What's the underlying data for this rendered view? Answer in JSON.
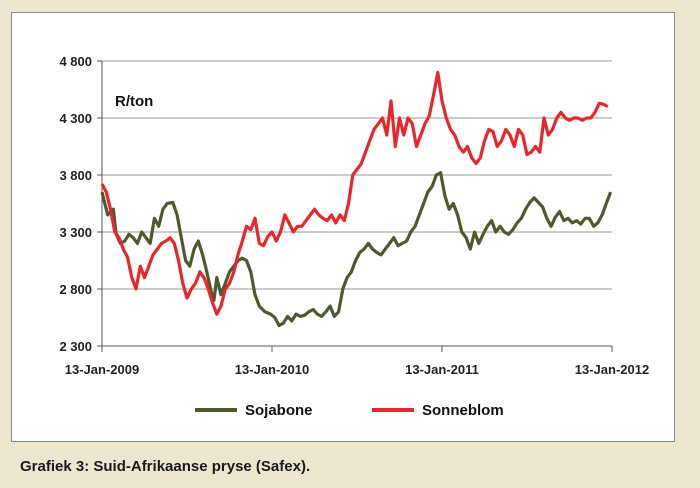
{
  "caption": "Grafiek 3: Suid-Afrikaanse pryse (Safex).",
  "chart_data": {
    "type": "line",
    "unit_label": "R/ton",
    "ylim": [
      2300,
      4800
    ],
    "yticks": [
      2300,
      2800,
      3300,
      3800,
      4300,
      4800
    ],
    "ytick_labels": [
      "2 300",
      "2 800",
      "3 300",
      "3 800",
      "4 300",
      "4 800"
    ],
    "xlim": [
      0,
      36
    ],
    "xticks": [
      0,
      12,
      24,
      36
    ],
    "xtick_labels": [
      "13-Jan-2009",
      "13-Jan-2010",
      "13-Jan-2011",
      "13-Jan-2012"
    ],
    "legend_position": "bottom",
    "grid": "horizontal",
    "series": [
      {
        "name": "Sojabone",
        "color": "#4d5a2f",
        "points": [
          [
            0.0,
            3650
          ],
          [
            0.4,
            3450
          ],
          [
            0.8,
            3500
          ],
          [
            1.0,
            3280
          ],
          [
            1.3,
            3200
          ],
          [
            1.6,
            3220
          ],
          [
            1.9,
            3280
          ],
          [
            2.2,
            3250
          ],
          [
            2.5,
            3200
          ],
          [
            2.8,
            3300
          ],
          [
            3.1,
            3250
          ],
          [
            3.4,
            3200
          ],
          [
            3.7,
            3420
          ],
          [
            4.0,
            3350
          ],
          [
            4.3,
            3500
          ],
          [
            4.6,
            3550
          ],
          [
            5.0,
            3560
          ],
          [
            5.3,
            3450
          ],
          [
            5.6,
            3250
          ],
          [
            5.9,
            3050
          ],
          [
            6.2,
            3000
          ],
          [
            6.5,
            3150
          ],
          [
            6.8,
            3220
          ],
          [
            7.1,
            3100
          ],
          [
            7.4,
            2950
          ],
          [
            7.7,
            2780
          ],
          [
            7.9,
            2700
          ],
          [
            8.1,
            2900
          ],
          [
            8.4,
            2750
          ],
          [
            8.7,
            2850
          ],
          [
            9.0,
            2950
          ],
          [
            9.3,
            3000
          ],
          [
            9.6,
            3050
          ],
          [
            9.9,
            3070
          ],
          [
            10.2,
            3050
          ],
          [
            10.5,
            2950
          ],
          [
            10.8,
            2750
          ],
          [
            11.1,
            2650
          ],
          [
            11.5,
            2600
          ],
          [
            11.9,
            2580
          ],
          [
            12.2,
            2550
          ],
          [
            12.5,
            2480
          ],
          [
            12.8,
            2500
          ],
          [
            13.1,
            2560
          ],
          [
            13.4,
            2520
          ],
          [
            13.7,
            2580
          ],
          [
            14.0,
            2560
          ],
          [
            14.3,
            2570
          ],
          [
            14.6,
            2600
          ],
          [
            14.9,
            2620
          ],
          [
            15.2,
            2580
          ],
          [
            15.5,
            2560
          ],
          [
            15.8,
            2600
          ],
          [
            16.1,
            2650
          ],
          [
            16.4,
            2560
          ],
          [
            16.7,
            2600
          ],
          [
            17.0,
            2800
          ],
          [
            17.3,
            2900
          ],
          [
            17.6,
            2950
          ],
          [
            17.9,
            3050
          ],
          [
            18.2,
            3120
          ],
          [
            18.5,
            3150
          ],
          [
            18.8,
            3200
          ],
          [
            19.1,
            3150
          ],
          [
            19.4,
            3120
          ],
          [
            19.7,
            3100
          ],
          [
            20.0,
            3150
          ],
          [
            20.3,
            3200
          ],
          [
            20.6,
            3250
          ],
          [
            20.9,
            3180
          ],
          [
            21.2,
            3200
          ],
          [
            21.5,
            3220
          ],
          [
            21.8,
            3300
          ],
          [
            22.1,
            3350
          ],
          [
            22.4,
            3450
          ],
          [
            22.7,
            3550
          ],
          [
            23.0,
            3650
          ],
          [
            23.3,
            3700
          ],
          [
            23.6,
            3800
          ],
          [
            23.9,
            3820
          ],
          [
            24.2,
            3620
          ],
          [
            24.5,
            3500
          ],
          [
            24.8,
            3550
          ],
          [
            25.1,
            3450
          ],
          [
            25.4,
            3300
          ],
          [
            25.7,
            3250
          ],
          [
            26.0,
            3150
          ],
          [
            26.3,
            3300
          ],
          [
            26.6,
            3200
          ],
          [
            26.9,
            3280
          ],
          [
            27.2,
            3350
          ],
          [
            27.5,
            3400
          ],
          [
            27.8,
            3300
          ],
          [
            28.1,
            3350
          ],
          [
            28.4,
            3300
          ],
          [
            28.7,
            3280
          ],
          [
            29.0,
            3320
          ],
          [
            29.3,
            3380
          ],
          [
            29.6,
            3420
          ],
          [
            29.9,
            3500
          ],
          [
            30.2,
            3560
          ],
          [
            30.5,
            3600
          ],
          [
            30.8,
            3560
          ],
          [
            31.1,
            3520
          ],
          [
            31.4,
            3420
          ],
          [
            31.7,
            3350
          ],
          [
            32.0,
            3430
          ],
          [
            32.3,
            3480
          ],
          [
            32.6,
            3400
          ],
          [
            32.9,
            3420
          ],
          [
            33.2,
            3380
          ],
          [
            33.5,
            3400
          ],
          [
            33.8,
            3370
          ],
          [
            34.1,
            3420
          ],
          [
            34.4,
            3420
          ],
          [
            34.7,
            3350
          ],
          [
            35.0,
            3380
          ],
          [
            35.3,
            3450
          ],
          [
            35.6,
            3550
          ],
          [
            35.9,
            3650
          ]
        ]
      },
      {
        "name": "Sonneblom",
        "color": "#e8262b",
        "points": [
          [
            0.0,
            3720
          ],
          [
            0.3,
            3650
          ],
          [
            0.6,
            3500
          ],
          [
            0.9,
            3300
          ],
          [
            1.2,
            3250
          ],
          [
            1.5,
            3150
          ],
          [
            1.8,
            3080
          ],
          [
            2.1,
            2900
          ],
          [
            2.4,
            2800
          ],
          [
            2.7,
            3000
          ],
          [
            3.0,
            2900
          ],
          [
            3.3,
            3000
          ],
          [
            3.6,
            3100
          ],
          [
            3.9,
            3150
          ],
          [
            4.2,
            3200
          ],
          [
            4.5,
            3220
          ],
          [
            4.8,
            3250
          ],
          [
            5.1,
            3200
          ],
          [
            5.4,
            3050
          ],
          [
            5.7,
            2850
          ],
          [
            6.0,
            2720
          ],
          [
            6.3,
            2800
          ],
          [
            6.6,
            2850
          ],
          [
            6.9,
            2950
          ],
          [
            7.2,
            2900
          ],
          [
            7.5,
            2800
          ],
          [
            7.8,
            2680
          ],
          [
            8.1,
            2580
          ],
          [
            8.4,
            2650
          ],
          [
            8.7,
            2800
          ],
          [
            9.0,
            2850
          ],
          [
            9.3,
            2950
          ],
          [
            9.6,
            3100
          ],
          [
            9.9,
            3220
          ],
          [
            10.2,
            3350
          ],
          [
            10.5,
            3320
          ],
          [
            10.8,
            3420
          ],
          [
            11.1,
            3200
          ],
          [
            11.4,
            3180
          ],
          [
            11.7,
            3260
          ],
          [
            12.0,
            3300
          ],
          [
            12.3,
            3220
          ],
          [
            12.6,
            3300
          ],
          [
            12.9,
            3450
          ],
          [
            13.2,
            3380
          ],
          [
            13.5,
            3300
          ],
          [
            13.8,
            3350
          ],
          [
            14.1,
            3350
          ],
          [
            14.4,
            3400
          ],
          [
            14.7,
            3450
          ],
          [
            15.0,
            3500
          ],
          [
            15.3,
            3450
          ],
          [
            15.6,
            3420
          ],
          [
            15.9,
            3400
          ],
          [
            16.2,
            3450
          ],
          [
            16.5,
            3380
          ],
          [
            16.8,
            3450
          ],
          [
            17.1,
            3400
          ],
          [
            17.4,
            3550
          ],
          [
            17.7,
            3800
          ],
          [
            18.0,
            3850
          ],
          [
            18.3,
            3900
          ],
          [
            18.6,
            4000
          ],
          [
            18.9,
            4100
          ],
          [
            19.2,
            4200
          ],
          [
            19.5,
            4250
          ],
          [
            19.8,
            4300
          ],
          [
            20.1,
            4150
          ],
          [
            20.4,
            4450
          ],
          [
            20.7,
            4050
          ],
          [
            21.0,
            4300
          ],
          [
            21.3,
            4150
          ],
          [
            21.6,
            4300
          ],
          [
            21.9,
            4250
          ],
          [
            22.2,
            4050
          ],
          [
            22.5,
            4150
          ],
          [
            22.8,
            4250
          ],
          [
            23.1,
            4320
          ],
          [
            23.4,
            4500
          ],
          [
            23.7,
            4700
          ],
          [
            24.0,
            4450
          ],
          [
            24.3,
            4300
          ],
          [
            24.6,
            4200
          ],
          [
            24.9,
            4150
          ],
          [
            25.2,
            4050
          ],
          [
            25.5,
            4000
          ],
          [
            25.8,
            4050
          ],
          [
            26.1,
            3950
          ],
          [
            26.4,
            3900
          ],
          [
            26.7,
            3950
          ],
          [
            27.0,
            4100
          ],
          [
            27.3,
            4200
          ],
          [
            27.6,
            4180
          ],
          [
            27.9,
            4050
          ],
          [
            28.2,
            4100
          ],
          [
            28.5,
            4200
          ],
          [
            28.8,
            4150
          ],
          [
            29.1,
            4050
          ],
          [
            29.4,
            4200
          ],
          [
            29.7,
            4150
          ],
          [
            30.0,
            3980
          ],
          [
            30.3,
            4000
          ],
          [
            30.6,
            4050
          ],
          [
            30.9,
            4000
          ],
          [
            31.2,
            4300
          ],
          [
            31.5,
            4150
          ],
          [
            31.8,
            4200
          ],
          [
            32.1,
            4300
          ],
          [
            32.4,
            4350
          ],
          [
            32.7,
            4300
          ],
          [
            33.0,
            4280
          ],
          [
            33.3,
            4300
          ],
          [
            33.6,
            4300
          ],
          [
            33.9,
            4280
          ],
          [
            34.2,
            4300
          ],
          [
            34.5,
            4300
          ],
          [
            34.8,
            4350
          ],
          [
            35.1,
            4430
          ],
          [
            35.4,
            4420
          ],
          [
            35.7,
            4400
          ]
        ]
      }
    ]
  }
}
